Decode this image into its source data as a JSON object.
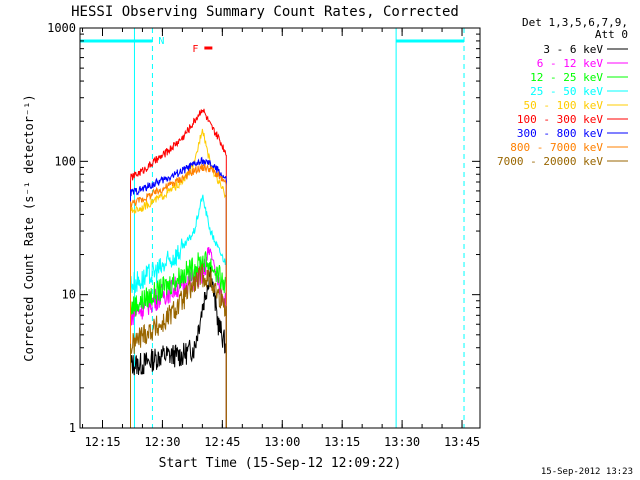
{
  "chart_data": {
    "type": "line",
    "title": "HESSI Observing Summary Count Rates, Corrected",
    "xlabel": "Start Time (15-Sep-12 12:09:22)",
    "ylabel": "Corrected Count Rate (s⁻¹ detector⁻¹)",
    "y_scale": "log",
    "ylim": [
      1,
      1000
    ],
    "xlim": [
      "12:09:22",
      "13:49:30"
    ],
    "x_ticks": [
      "12:15",
      "12:30",
      "12:45",
      "13:00",
      "13:15",
      "13:30",
      "13:45"
    ],
    "y_ticks": [
      "1",
      "10",
      "100",
      "1000"
    ],
    "legend_title": [
      "Det 1,3,5,6,7,9,",
      "Att 0"
    ],
    "legend_position": "outside-right",
    "timestamp": "15-Sep-2012 13:23",
    "flags": {
      "N_label": "N",
      "F_label": "F",
      "night_intervals": [
        [
          "12:09:22",
          "12:27:30"
        ],
        [
          "13:28:30",
          "13:45:30"
        ]
      ],
      "night_color": "#00ffff",
      "flare_interval": [
        "12:40:30",
        "12:42:30"
      ],
      "flare_color": "#ff0000"
    },
    "boundaries": {
      "data_gap_solid": [
        "12:09:22",
        "12:23:00",
        "13:28:30"
      ],
      "saa_dashed": [
        "12:27:30",
        "13:45:30"
      ]
    },
    "series": [
      {
        "name": "3 - 6 keV",
        "color": "#000000",
        "x": [
          "12:22:00",
          "12:25:00",
          "12:30:00",
          "12:35:00",
          "12:38:00",
          "12:40:00",
          "12:42:00",
          "12:44:00",
          "12:46:00"
        ],
        "values": [
          3,
          3,
          3.5,
          3.5,
          4,
          8,
          15,
          6,
          4
        ]
      },
      {
        "name": "6 - 12 keV",
        "color": "#ff00ff",
        "x": [
          "12:22:00",
          "12:25:00",
          "12:30:00",
          "12:35:00",
          "12:38:00",
          "12:40:00",
          "12:42:00",
          "12:44:00",
          "12:46:00"
        ],
        "values": [
          7,
          8,
          10,
          12,
          13,
          14,
          22,
          12,
          9
        ]
      },
      {
        "name": "12 - 25 keV",
        "color": "#00ff00",
        "x": [
          "12:22:00",
          "12:25:00",
          "12:30:00",
          "12:35:00",
          "12:38:00",
          "12:40:00",
          "12:42:00",
          "12:44:00",
          "12:46:00"
        ],
        "values": [
          8,
          9,
          11,
          14,
          16,
          18,
          17,
          14,
          11
        ]
      },
      {
        "name": "25 - 50 keV",
        "color": "#00ffff",
        "x": [
          "12:22:00",
          "12:25:00",
          "12:30:00",
          "12:35:00",
          "12:38:00",
          "12:40:00",
          "12:42:00",
          "12:44:00",
          "12:46:00"
        ],
        "values": [
          12,
          13,
          16,
          22,
          30,
          55,
          30,
          22,
          17
        ]
      },
      {
        "name": "50 - 100 keV",
        "color": "#ffcc00",
        "x": [
          "12:22:00",
          "12:25:00",
          "12:30:00",
          "12:35:00",
          "12:38:00",
          "12:40:00",
          "12:42:00",
          "12:44:00",
          "12:46:00"
        ],
        "values": [
          42,
          45,
          55,
          70,
          95,
          180,
          95,
          70,
          55
        ]
      },
      {
        "name": "100 - 300 keV",
        "color": "#ff0000",
        "x": [
          "12:22:00",
          "12:25:00",
          "12:30:00",
          "12:35:00",
          "12:38:00",
          "12:40:00",
          "12:42:00",
          "12:44:00",
          "12:46:00"
        ],
        "values": [
          75,
          85,
          110,
          150,
          200,
          250,
          185,
          150,
          115
        ]
      },
      {
        "name": "300 - 800 keV",
        "color": "#0000ff",
        "x": [
          "12:22:00",
          "12:25:00",
          "12:30:00",
          "12:35:00",
          "12:38:00",
          "12:40:00",
          "12:42:00",
          "12:44:00",
          "12:46:00"
        ],
        "values": [
          58,
          62,
          72,
          85,
          95,
          100,
          95,
          85,
          72
        ]
      },
      {
        "name": "800 - 7000 keV",
        "color": "#ff8000",
        "x": [
          "12:22:00",
          "12:25:00",
          "12:30:00",
          "12:35:00",
          "12:38:00",
          "12:40:00",
          "12:42:00",
          "12:44:00",
          "12:46:00"
        ],
        "values": [
          48,
          52,
          62,
          75,
          85,
          90,
          88,
          78,
          66
        ]
      },
      {
        "name": "7000 - 20000 keV",
        "color": "#996600",
        "x": [
          "12:22:00",
          "12:25:00",
          "12:30:00",
          "12:35:00",
          "12:38:00",
          "12:40:00",
          "12:42:00",
          "12:44:00",
          "12:46:00"
        ],
        "values": [
          4,
          5,
          6,
          9,
          12,
          14,
          13,
          10,
          8
        ]
      }
    ]
  }
}
